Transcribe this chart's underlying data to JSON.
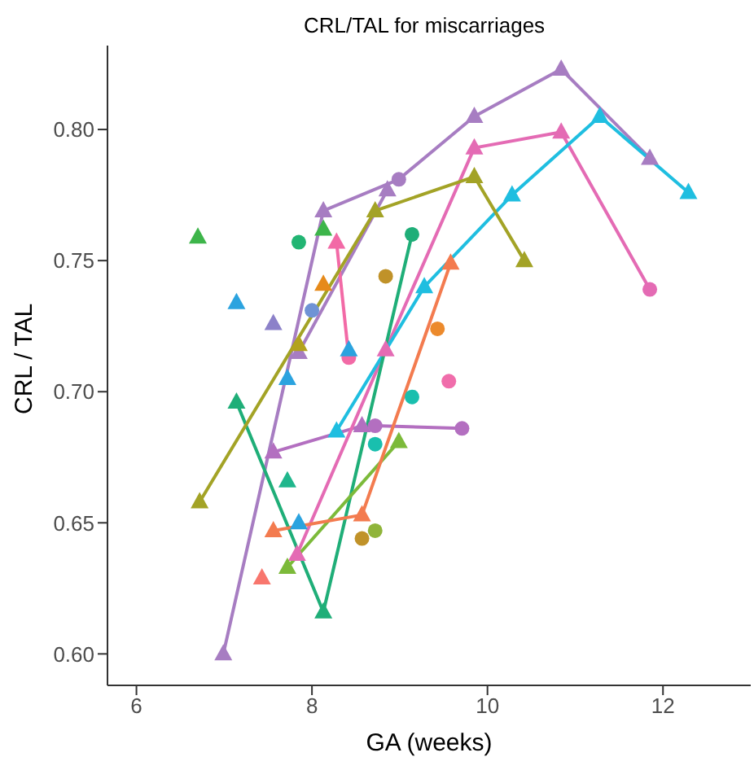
{
  "chart_data": {
    "type": "line",
    "title": "CRL/TAL for miscarriages",
    "xlabel": "GA (weeks)",
    "ylabel": "CRL / TAL",
    "xlim": [
      5.67,
      13.0
    ],
    "xticks": [
      6,
      8,
      10,
      12
    ],
    "ylim": [
      0.588,
      0.832
    ],
    "yticks": [
      {
        "value": 0.6,
        "label": "0.60"
      },
      {
        "value": 0.65,
        "label": "0.65"
      },
      {
        "value": 0.7,
        "label": "0.70"
      },
      {
        "value": 0.75,
        "label": "0.75"
      },
      {
        "value": 0.8,
        "label": "0.80"
      }
    ],
    "grid": false,
    "legend": false,
    "line_style": "solid",
    "series": [
      {
        "type": "line",
        "color": "#a77dc2",
        "marker": [
          "triangle",
          "triangle",
          "circle",
          "triangle",
          "triangle",
          "triangle"
        ],
        "x": [
          6.99,
          8.13,
          8.99,
          9.85,
          10.84,
          11.85
        ],
        "values": [
          0.6,
          0.769,
          0.781,
          0.805,
          0.823,
          0.789
        ]
      },
      {
        "type": "line",
        "color": "#a77dc2",
        "marker": "triangle",
        "x": [
          7.85,
          8.86
        ],
        "values": [
          0.715,
          0.777
        ]
      },
      {
        "type": "line",
        "color": "#b36fc0",
        "marker": [
          "triangle",
          "triangle",
          "circle",
          "circle"
        ],
        "x": [
          7.56,
          8.57,
          8.72,
          9.71
        ],
        "values": [
          0.677,
          0.687,
          0.687,
          0.686
        ]
      },
      {
        "type": "line",
        "color": "#e46bb4",
        "marker": [
          "triangle",
          "triangle",
          "triangle",
          "triangle",
          "circle"
        ],
        "x": [
          7.83,
          8.84,
          9.85,
          10.84,
          11.85
        ],
        "values": [
          0.638,
          0.716,
          0.793,
          0.799,
          0.739
        ]
      },
      {
        "type": "line",
        "color": "#f26aa6",
        "marker": [
          "triangle",
          "circle"
        ],
        "x": [
          8.28,
          8.42
        ],
        "values": [
          0.757,
          0.713
        ]
      },
      {
        "type": "line",
        "color": "#1fbee0",
        "marker": "triangle",
        "x": [
          8.28,
          9.28,
          10.28,
          11.28,
          12.29
        ],
        "values": [
          0.685,
          0.74,
          0.775,
          0.805,
          0.776
        ]
      },
      {
        "type": "line",
        "color": "#1fae78",
        "marker": [
          "triangle",
          "triangle",
          "circle"
        ],
        "x": [
          7.14,
          8.13,
          9.14
        ],
        "values": [
          0.696,
          0.616,
          0.76
        ]
      },
      {
        "type": "line",
        "color": "#7cba3a",
        "marker": "triangle",
        "x": [
          7.72,
          8.99
        ],
        "values": [
          0.633,
          0.681
        ]
      },
      {
        "type": "line",
        "color": "#f37b4f",
        "marker": "triangle",
        "x": [
          7.56,
          8.57,
          9.58
        ],
        "values": [
          0.647,
          0.653,
          0.749
        ]
      },
      {
        "type": "line",
        "color": "#a3a326",
        "marker": "triangle",
        "x": [
          6.72,
          8.72,
          9.85,
          10.42
        ],
        "values": [
          0.658,
          0.769,
          0.782,
          0.75
        ]
      },
      {
        "type": "scatter",
        "color": "#f06dab",
        "marker": "circle",
        "x": [
          9.56
        ],
        "values": [
          0.704
        ]
      },
      {
        "type": "scatter",
        "color": "#2ba3df",
        "marker": "triangle",
        "x": [
          7.14,
          7.72,
          7.85,
          8.42
        ],
        "values": [
          0.734,
          0.705,
          0.65,
          0.716
        ]
      },
      {
        "type": "scatter",
        "color": "#19bfae",
        "marker": "circle",
        "x": [
          9.14,
          8.72
        ],
        "values": [
          0.698,
          0.68
        ]
      },
      {
        "type": "scatter",
        "color": "#22b573",
        "marker": "circle",
        "x": [
          7.85
        ],
        "values": [
          0.757
        ]
      },
      {
        "type": "scatter",
        "color": "#3db54a",
        "marker": "triangle",
        "x": [
          6.7,
          8.13
        ],
        "values": [
          0.759,
          0.762
        ]
      },
      {
        "type": "scatter",
        "color": "#20b68c",
        "marker": "triangle",
        "x": [
          7.72
        ],
        "values": [
          0.666
        ]
      },
      {
        "type": "scatter",
        "color": "#8fb43a",
        "marker": "circle",
        "x": [
          8.72
        ],
        "values": [
          0.647
        ]
      },
      {
        "type": "scatter",
        "color": "#f8766d",
        "marker": "triangle",
        "x": [
          7.43
        ],
        "values": [
          0.629
        ]
      },
      {
        "type": "scatter",
        "color": "#ec8a2c",
        "marker": "circle",
        "x": [
          9.43
        ],
        "values": [
          0.724
        ]
      },
      {
        "type": "scatter",
        "color": "#c09229",
        "marker": "circle",
        "x": [
          8.57,
          8.84
        ],
        "values": [
          0.644,
          0.744
        ]
      },
      {
        "type": "scatter",
        "color": "#e68a1a",
        "marker": "triangle",
        "x": [
          8.13
        ],
        "values": [
          0.741
        ]
      },
      {
        "type": "scatter",
        "color": "#b3a21e",
        "marker": "triangle",
        "x": [
          7.85
        ],
        "values": [
          0.718
        ]
      },
      {
        "type": "scatter",
        "color": "#6f93d5",
        "marker": "circle",
        "x": [
          8.0
        ],
        "values": [
          0.731
        ]
      },
      {
        "type": "scatter",
        "color": "#8c81c9",
        "marker": "triangle",
        "x": [
          7.56
        ],
        "values": [
          0.726
        ]
      }
    ]
  }
}
